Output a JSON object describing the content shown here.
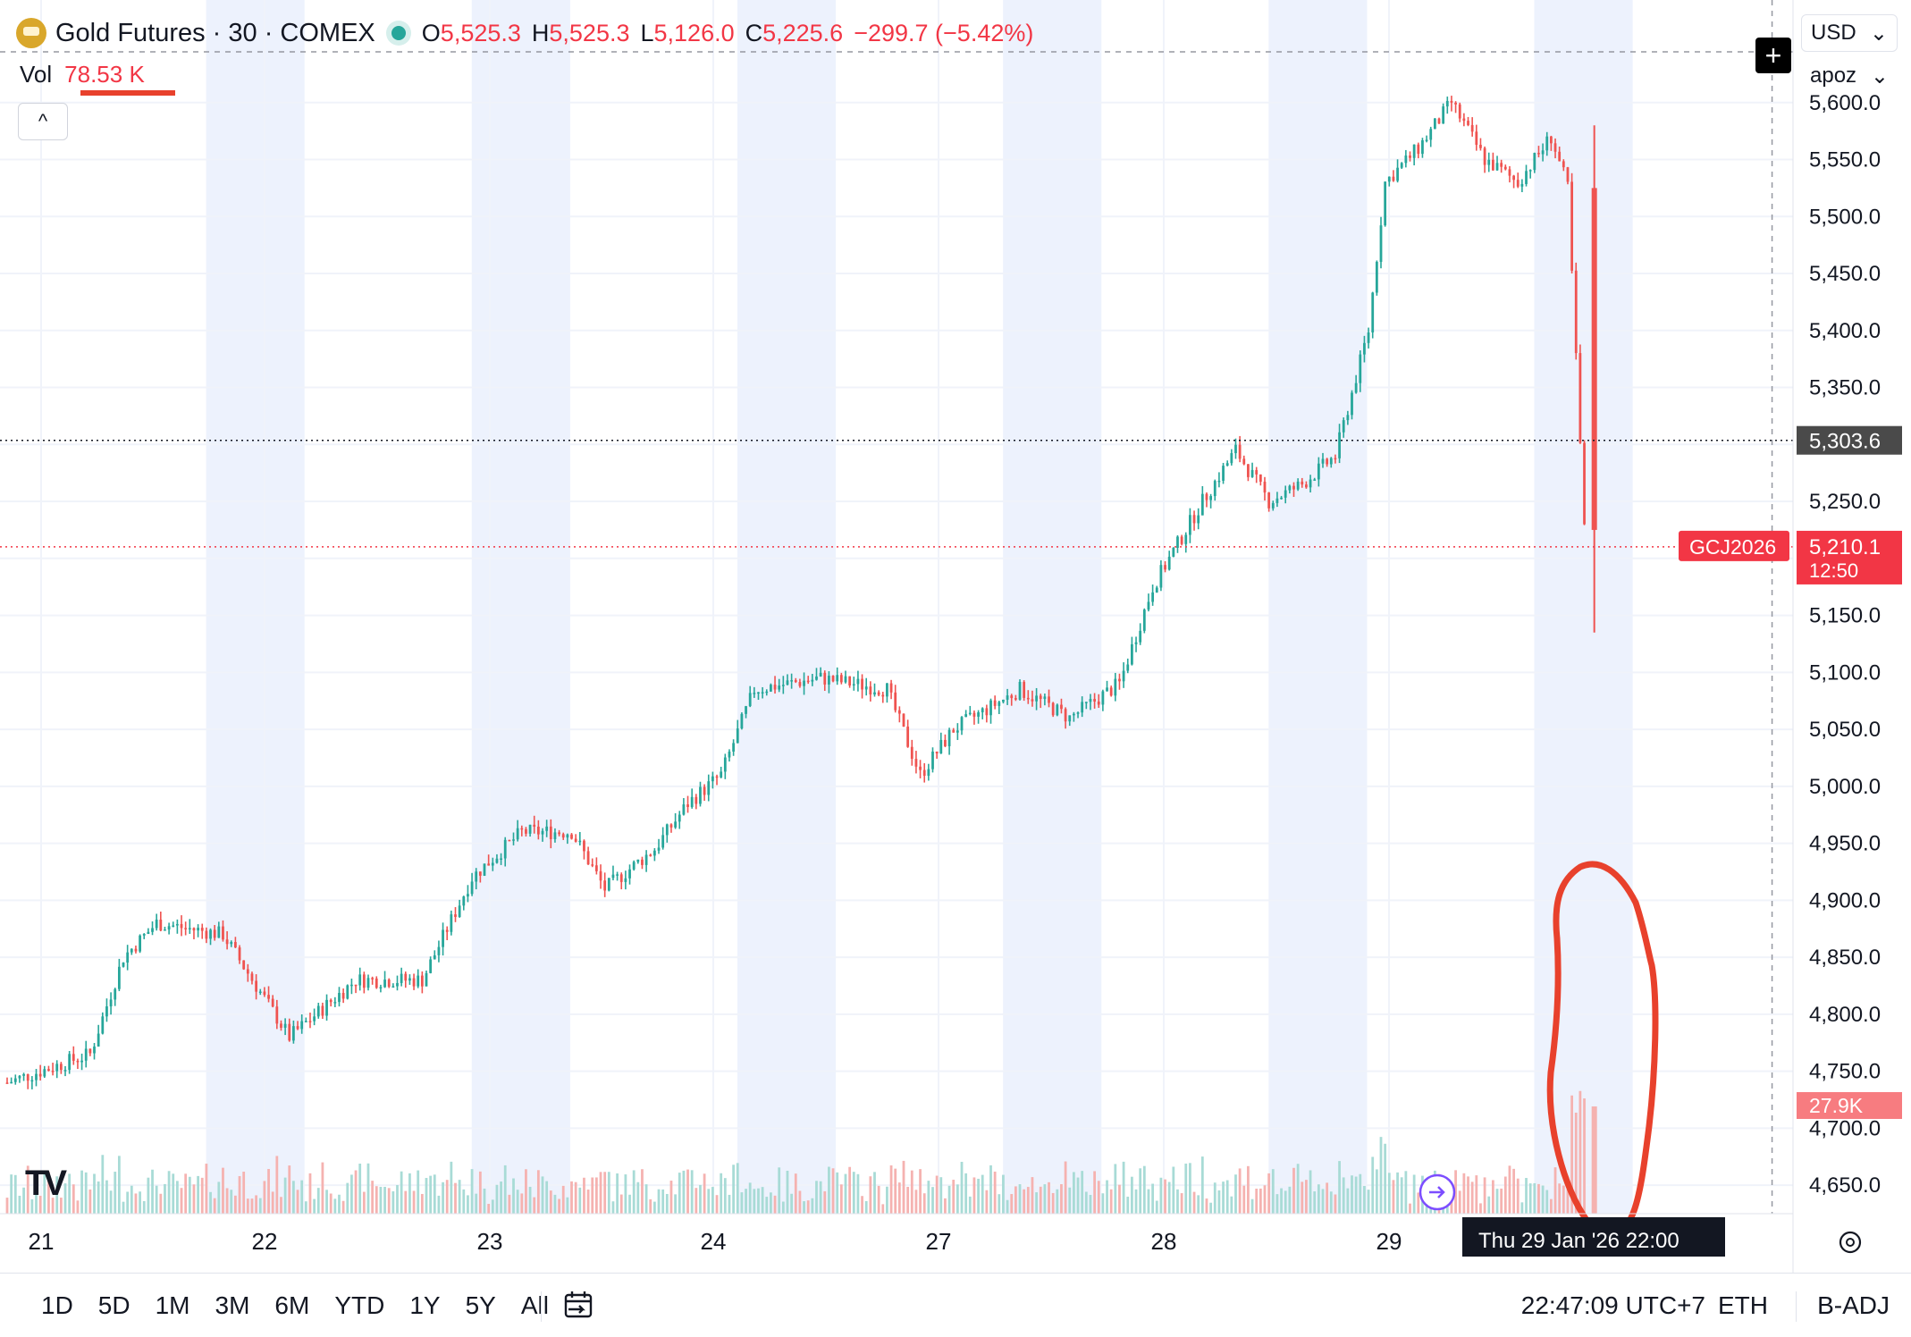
{
  "header": {
    "symbol_title": "Gold Futures · 30 · COMEX",
    "ohlc": [
      {
        "key": "O",
        "value": "5,525.3"
      },
      {
        "key": "H",
        "value": "5,525.3"
      },
      {
        "key": "L",
        "value": "5,126.0"
      },
      {
        "key": "C",
        "value": "5,225.6"
      }
    ],
    "change": "−299.7 (−5.42%)",
    "vol_label": "Vol",
    "vol_value": "78.53 K"
  },
  "controls": {
    "collapse": "^",
    "currency": "USD",
    "unit": "apoz",
    "add": "+"
  },
  "price_labels": {
    "crosshair_price": "5,303.6",
    "symbol_tag": "GCJ2026",
    "last_price": "5,210.1",
    "countdown": "12:50",
    "volume_last": "27.9K"
  },
  "crosshair_time": "Thu 29 Jan '26   22:00",
  "bottom_bar": {
    "ranges": [
      "1D",
      "5D",
      "1M",
      "3M",
      "6M",
      "YTD",
      "1Y",
      "5Y",
      "All"
    ],
    "clock": "22:47:09 UTC+7",
    "session": "ETH",
    "adjust": "B-ADJ"
  },
  "colors": {
    "up": "#26a69a",
    "down": "#ef5350",
    "session_bg": "#edf2fd",
    "annotation": "#e8412c"
  },
  "icons": [
    "gold-logo-icon",
    "market-open-dot-icon",
    "chevron-up-icon",
    "plus-icon",
    "calendar-icon",
    "settings-gear-icon",
    "goto-realtime-icon",
    "tradingview-logo-icon"
  ],
  "chart_data": {
    "type": "candlestick",
    "title": "Gold Futures · 30 · COMEX",
    "interval": "30",
    "y_axis": {
      "ticks": [
        5600,
        5550,
        5500,
        5450,
        5400,
        5350,
        5300,
        5250,
        5200,
        5150,
        5100,
        5050,
        5000,
        4950,
        4900,
        4850,
        4800,
        4750,
        4700,
        4650
      ],
      "tick_labels": [
        "5,600.0",
        "5,550.0",
        "5,500.0",
        "5,450.0",
        "5,400.0",
        "5,350.0",
        "5,250.0",
        "5,150.0",
        "5,100.0",
        "5,050.0",
        "5,000.0",
        "4,950.0",
        "4,900.0",
        "4,850.0",
        "4,800.0",
        "4,750.0",
        "4,700.0",
        "4,650.0"
      ],
      "range": [
        4625,
        5690
      ]
    },
    "x_axis": {
      "tick_labels": [
        "21",
        "22",
        "23",
        "24",
        "27",
        "28",
        "29"
      ],
      "range_index": [
        0,
        108
      ]
    },
    "grid": true,
    "crosshair": {
      "price": 5303.6,
      "x_index": 106.2
    },
    "last_price": 5210.1,
    "day_boundaries": [
      8,
      16,
      24,
      32,
      40,
      48,
      56,
      64,
      72,
      80,
      88,
      96,
      104
    ],
    "key_points": [
      {
        "index": 0,
        "price": 4740
      },
      {
        "index": 5,
        "price": 4765
      },
      {
        "index": 7,
        "price": 4850
      },
      {
        "index": 9,
        "price": 4880
      },
      {
        "index": 13,
        "price": 4870
      },
      {
        "index": 17,
        "price": 4780
      },
      {
        "index": 21,
        "price": 4830
      },
      {
        "index": 25,
        "price": 4830
      },
      {
        "index": 28,
        "price": 4920
      },
      {
        "index": 31,
        "price": 4960
      },
      {
        "index": 34,
        "price": 4960
      },
      {
        "index": 36,
        "price": 4910
      },
      {
        "index": 39,
        "price": 4945
      },
      {
        "index": 41,
        "price": 4985
      },
      {
        "index": 43,
        "price": 5010
      },
      {
        "index": 45,
        "price": 5085
      },
      {
        "index": 49,
        "price": 5095
      },
      {
        "index": 53,
        "price": 5085
      },
      {
        "index": 55,
        "price": 5010
      },
      {
        "index": 57,
        "price": 5050
      },
      {
        "index": 61,
        "price": 5085
      },
      {
        "index": 64,
        "price": 5060
      },
      {
        "index": 67,
        "price": 5090
      },
      {
        "index": 69,
        "price": 5175
      },
      {
        "index": 72,
        "price": 5250
      },
      {
        "index": 74,
        "price": 5295
      },
      {
        "index": 76,
        "price": 5250
      },
      {
        "index": 78,
        "price": 5265
      },
      {
        "index": 80,
        "price": 5290
      },
      {
        "index": 82,
        "price": 5400
      },
      {
        "index": 83,
        "price": 5530
      },
      {
        "index": 85,
        "price": 5560
      },
      {
        "index": 87,
        "price": 5600
      },
      {
        "index": 89,
        "price": 5550
      },
      {
        "index": 91,
        "price": 5530
      },
      {
        "index": 93,
        "price": 5570
      },
      {
        "index": 94,
        "price": 5525
      },
      {
        "index": 95,
        "price": 5225
      }
    ]
  }
}
